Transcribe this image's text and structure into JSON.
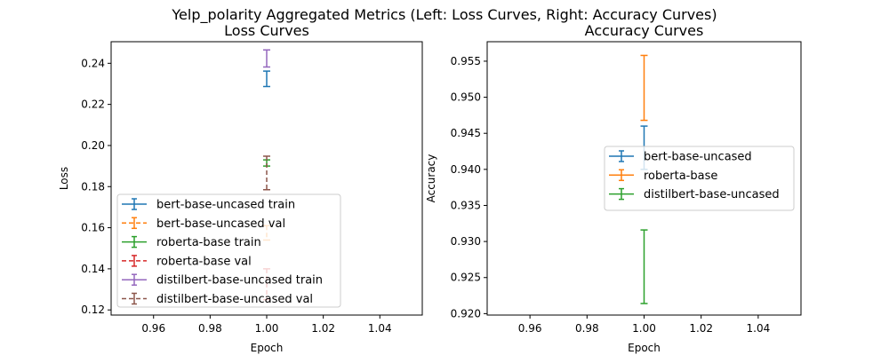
{
  "suptitle": "Yelp_polarity Aggregated Metrics (Left: Loss Curves, Right: Accuracy Curves)",
  "chart_data": [
    {
      "type": "line",
      "title": "Loss Curves",
      "xlabel": "Epoch",
      "ylabel": "Loss",
      "xlim": [
        0.945,
        1.055
      ],
      "ylim": [
        0.1175,
        0.2505
      ],
      "x_ticks": [
        0.96,
        0.98,
        1.0,
        1.02,
        1.04
      ],
      "x_tick_labels": [
        "0.96",
        "0.98",
        "1.00",
        "1.02",
        "1.04"
      ],
      "y_ticks": [
        0.12,
        0.14,
        0.16,
        0.18,
        0.2,
        0.22,
        0.24
      ],
      "y_tick_labels": [
        "0.12",
        "0.14",
        "0.16",
        "0.18",
        "0.20",
        "0.22",
        "0.24"
      ],
      "grid": false,
      "legend_position": "lower-left",
      "series": [
        {
          "name": "bert-base-uncased train",
          "color": "#1f77b4",
          "dashed": false,
          "x": [
            1.0
          ],
          "y": [
            0.2325
          ],
          "yerr_low": [
            0.2287
          ],
          "yerr_high": [
            0.2362
          ]
        },
        {
          "name": "bert-base-uncased val",
          "color": "#ff7f0e",
          "dashed": true,
          "x": [
            1.0
          ],
          "y": [
            0.1575
          ],
          "yerr_low": [
            0.154
          ],
          "yerr_high": [
            0.161
          ]
        },
        {
          "name": "roberta-base train",
          "color": "#2ca02c",
          "dashed": false,
          "x": [
            1.0
          ],
          "y": [
            0.1915
          ],
          "yerr_low": [
            0.19
          ],
          "yerr_high": [
            0.193
          ]
        },
        {
          "name": "roberta-base val",
          "color": "#d62728",
          "dashed": true,
          "x": [
            1.0
          ],
          "y": [
            0.1325
          ],
          "yerr_low": [
            0.125
          ],
          "yerr_high": [
            0.14
          ]
        },
        {
          "name": "distilbert-base-uncased train",
          "color": "#9467bd",
          "dashed": false,
          "x": [
            1.0
          ],
          "y": [
            0.2425
          ],
          "yerr_low": [
            0.2382
          ],
          "yerr_high": [
            0.2465
          ]
        },
        {
          "name": "distilbert-base-uncased val",
          "color": "#8c564b",
          "dashed": true,
          "x": [
            1.0
          ],
          "y": [
            0.1865
          ],
          "yerr_low": [
            0.1785
          ],
          "yerr_high": [
            0.1948
          ]
        }
      ]
    },
    {
      "type": "line",
      "title": "Accuracy Curves",
      "xlabel": "Epoch",
      "ylabel": "Accuracy",
      "xlim": [
        0.945,
        1.055
      ],
      "ylim": [
        0.9198,
        0.9577
      ],
      "x_ticks": [
        0.96,
        0.98,
        1.0,
        1.02,
        1.04
      ],
      "x_tick_labels": [
        "0.96",
        "0.98",
        "1.00",
        "1.02",
        "1.04"
      ],
      "y_ticks": [
        0.92,
        0.925,
        0.93,
        0.935,
        0.94,
        0.945,
        0.95,
        0.955
      ],
      "y_tick_labels": [
        "0.920",
        "0.925",
        "0.930",
        "0.935",
        "0.940",
        "0.945",
        "0.950",
        "0.955"
      ],
      "grid": false,
      "legend_position": "center-right",
      "series": [
        {
          "name": "bert-base-uncased",
          "color": "#1f77b4",
          "dashed": false,
          "x": [
            1.0
          ],
          "y": [
            0.943
          ],
          "yerr_low": [
            0.94
          ],
          "yerr_high": [
            0.946
          ]
        },
        {
          "name": "roberta-base",
          "color": "#ff7f0e",
          "dashed": false,
          "x": [
            1.0
          ],
          "y": [
            0.9513
          ],
          "yerr_low": [
            0.9468
          ],
          "yerr_high": [
            0.9558
          ]
        },
        {
          "name": "distilbert-base-uncased",
          "color": "#2ca02c",
          "dashed": false,
          "x": [
            1.0
          ],
          "y": [
            0.9265
          ],
          "yerr_low": [
            0.9214
          ],
          "yerr_high": [
            0.9316
          ]
        }
      ]
    }
  ]
}
